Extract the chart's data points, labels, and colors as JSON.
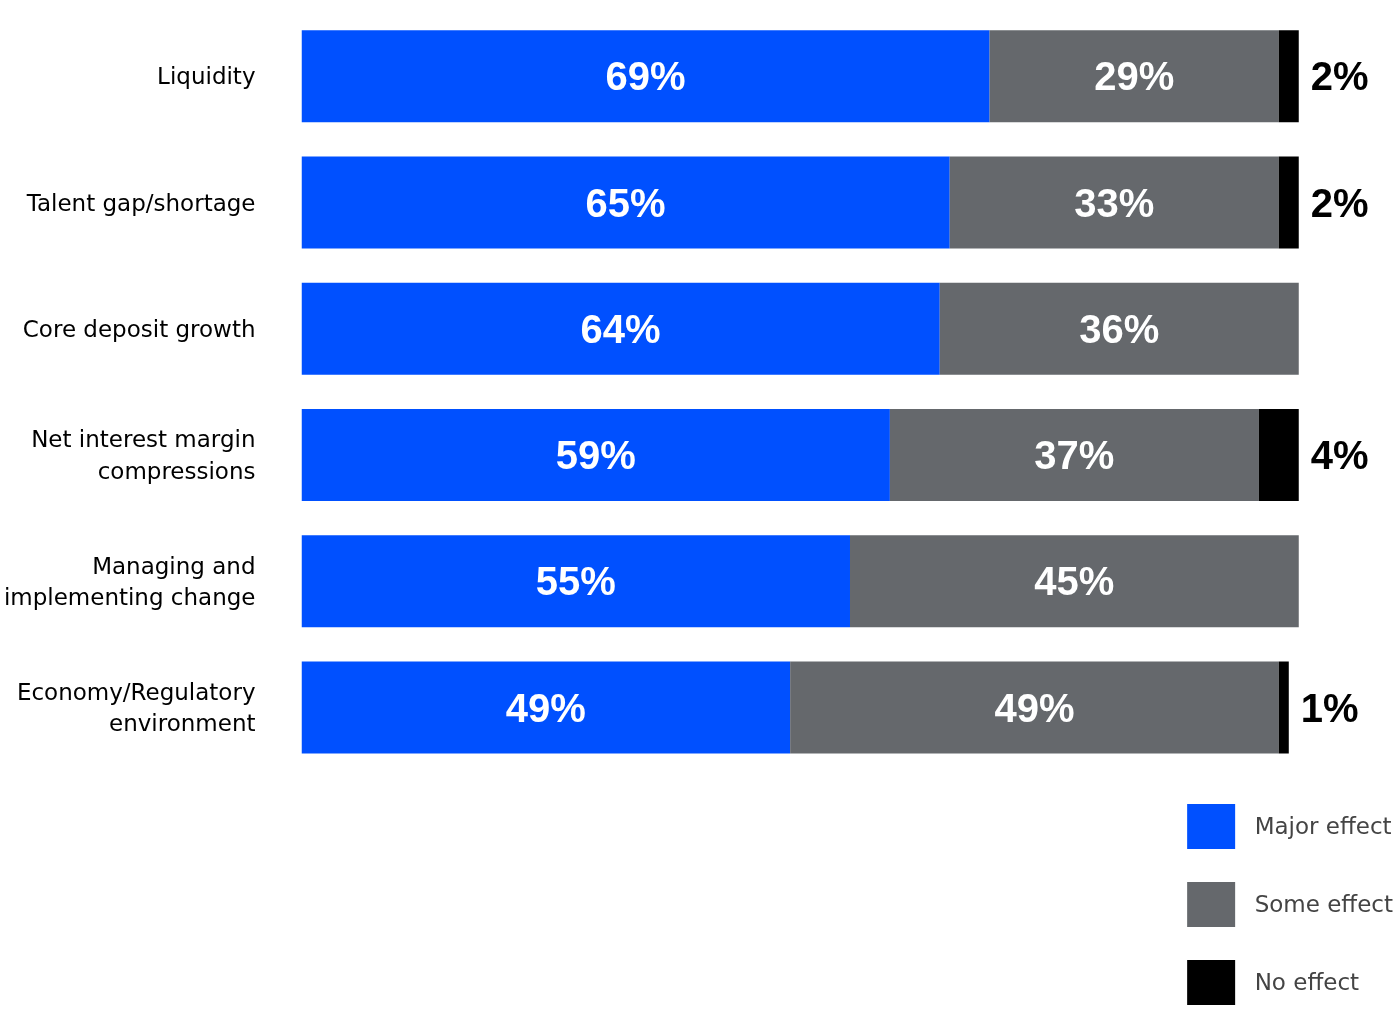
{
  "chart_data": {
    "type": "bar",
    "orientation": "horizontal",
    "stacked": true,
    "legend": "bottom right",
    "categories": [
      "Liquidity",
      "Talent gap/shortage",
      "Core deposit growth",
      "Net interest margin compressions",
      "Managing and implementing change",
      "Economy/Regulatory environment"
    ],
    "series": [
      {
        "name": "Major effect",
        "color": "#0050ff",
        "values": [
          69,
          65,
          64,
          59,
          55,
          49
        ],
        "value_labels": [
          "69%",
          "65%",
          "64%",
          "59%",
          "55%",
          "49%"
        ]
      },
      {
        "name": "Some effect",
        "color": "#65686c",
        "values": [
          29,
          33,
          36,
          37,
          45,
          49
        ],
        "value_labels": [
          "29%",
          "33%",
          "36%",
          "37%",
          "45%",
          "49%"
        ]
      },
      {
        "name": "No effect",
        "color": "#000000",
        "values": [
          2,
          2,
          0,
          4,
          0,
          1
        ],
        "value_labels": [
          "2%",
          "2%",
          null,
          "4%",
          null,
          "1%"
        ]
      }
    ]
  }
}
